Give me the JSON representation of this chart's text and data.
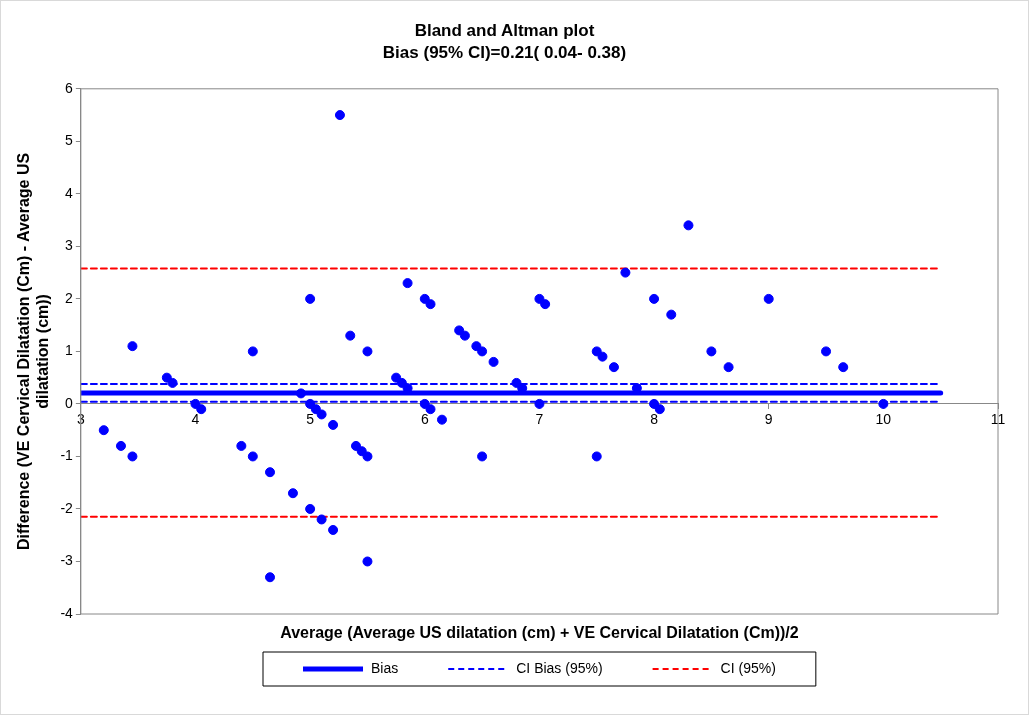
{
  "chart_data": {
    "type": "scatter",
    "title": "Bland and Altman plot",
    "subtitle": "Bias (95% CI)=0.21( 0.04- 0.38)",
    "xlabel": "Average (Average US dilatation (cm) + VE Cervical Dilatation (Cm))/2",
    "ylabel": "Difference (VE Cervical Dilatation (Cm) - Average US dilatation (cm))",
    "xlim": [
      3,
      11
    ],
    "xticks": [
      3,
      4,
      5,
      6,
      7,
      8,
      9,
      10,
      11
    ],
    "ylim": [
      -4,
      6
    ],
    "yticks": [
      -4,
      -3,
      -2,
      -1,
      0,
      1,
      2,
      3,
      4,
      5,
      6
    ],
    "grid": false,
    "legend": "bottom",
    "marker": "circle",
    "series": [
      {
        "color": "#0000ff",
        "x": [
          5.26,
          5.85,
          5.0,
          3.45,
          4.5,
          5.35,
          5.5,
          3.75,
          3.8,
          5.75,
          5.8,
          5.85,
          4.92,
          4.0,
          4.05,
          5.0,
          5.05,
          5.1,
          5.2,
          3.2,
          3.35,
          3.45,
          4.4,
          4.5,
          4.65,
          4.85,
          5.0,
          5.1,
          5.2,
          5.4,
          5.45,
          5.5,
          4.65,
          5.5,
          6.0,
          6.05,
          6.3,
          6.35,
          6.45,
          6.5,
          6.6,
          6.8,
          6.85,
          6.0,
          6.05,
          6.15,
          6.5,
          7.0,
          7.05,
          7.0,
          7.5,
          7.55,
          7.65,
          7.5,
          7.75,
          7.85,
          8.0,
          8.15,
          8.0,
          8.05,
          8.3,
          8.5,
          9.0,
          8.65,
          9.5,
          9.65,
          10.0
        ],
        "values": [
          5.5,
          2.3,
          2.0,
          1.1,
          1.0,
          1.3,
          1.0,
          0.5,
          0.4,
          0.5,
          0.4,
          0.3,
          0.2,
          0.0,
          -0.1,
          0.0,
          -0.1,
          -0.2,
          -0.4,
          -0.5,
          -0.8,
          -1.0,
          -0.8,
          -1.0,
          -1.3,
          -1.7,
          -2.0,
          -2.2,
          -2.4,
          -0.8,
          -0.9,
          -1.0,
          -3.3,
          -3.0,
          2.0,
          1.9,
          1.4,
          1.3,
          1.1,
          1.0,
          0.8,
          0.4,
          0.3,
          0.0,
          -0.1,
          -0.3,
          -1.0,
          2.0,
          1.9,
          0.0,
          1.0,
          0.9,
          0.7,
          -1.0,
          2.5,
          0.3,
          2.0,
          1.7,
          0.0,
          -0.1,
          3.4,
          1.0,
          2.0,
          0.7,
          1.0,
          0.7,
          0.0
        ]
      },
      {
        "type": "line",
        "name": "Bias",
        "color": "#0000ff",
        "line_style": "solid",
        "marker": "none",
        "x": [
          3,
          10.5
        ],
        "values": [
          0.21,
          0.21
        ]
      },
      {
        "type": "line",
        "name": "CI Bias (95%)",
        "color": "#0000ff",
        "line_style": "dashed",
        "marker": "none",
        "x": [
          3,
          10.5
        ],
        "values": [
          0.38,
          0.38
        ]
      },
      {
        "type": "line",
        "color": "#0000ff",
        "line_style": "dashed",
        "marker": "none",
        "x": [
          3,
          10.5
        ],
        "values": [
          0.04,
          0.04
        ]
      },
      {
        "type": "line",
        "name": "CI (95%)",
        "color": "#ff0000",
        "line_style": "dashed",
        "marker": "none",
        "x": [
          3,
          10.5
        ],
        "values": [
          2.58,
          2.58
        ]
      },
      {
        "type": "line",
        "color": "#ff0000",
        "line_style": "dashed",
        "marker": "none",
        "x": [
          3,
          10.5
        ],
        "values": [
          -2.15,
          -2.15
        ]
      }
    ]
  }
}
